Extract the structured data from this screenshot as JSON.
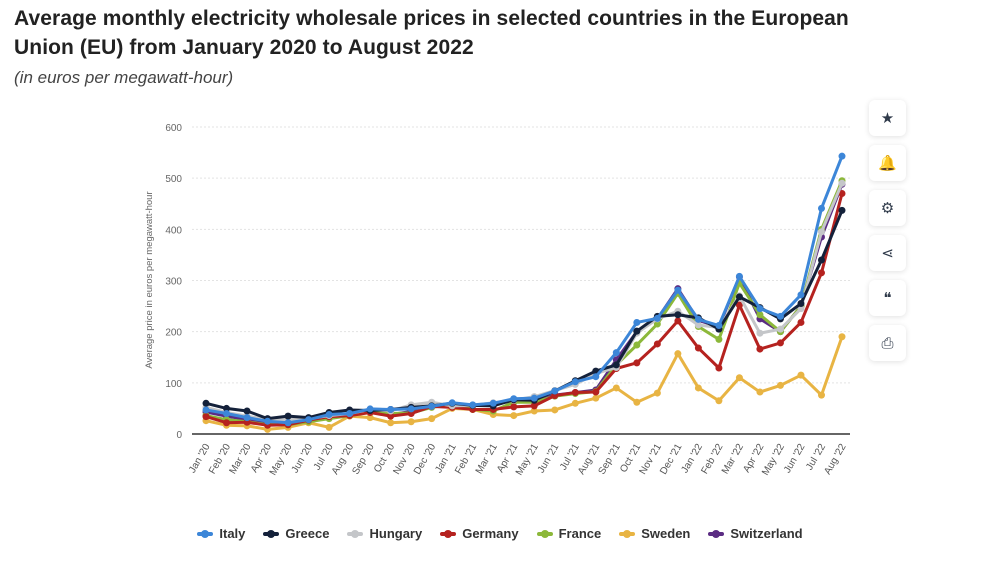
{
  "title": "Average monthly electricity wholesale prices in selected countries in the European Union (EU) from January 2020 to August 2022",
  "subtitle": "(in euros per megawatt-hour)",
  "side_buttons": [
    {
      "icon": "star-icon",
      "glyph": "★"
    },
    {
      "icon": "bell-icon",
      "glyph": "🔔"
    },
    {
      "icon": "gear-icon",
      "glyph": "⚙"
    },
    {
      "icon": "share-icon",
      "glyph": "⋖"
    },
    {
      "icon": "quote-icon",
      "glyph": "❝"
    },
    {
      "icon": "print-icon",
      "glyph": "⎙"
    }
  ],
  "chart_data": {
    "type": "line",
    "ylabel": "Average price in euros per megawatt-hour",
    "ylim": [
      0,
      600
    ],
    "yticks": [
      0,
      100,
      200,
      300,
      400,
      500,
      600
    ],
    "grid": true,
    "legend": "bottom",
    "categories": [
      "Jan '20",
      "Feb '20",
      "Mar '20",
      "Apr '20",
      "May '20",
      "Jun '20",
      "Jul '20",
      "Aug '20",
      "Sep '20",
      "Oct '20",
      "Nov '20",
      "Dec '20",
      "Jan '21",
      "Feb '21",
      "Mar '21",
      "Apr '21",
      "May '21",
      "Jun '21",
      "Jul '21",
      "Aug '21",
      "Sep '21",
      "Oct '21",
      "Nov '21",
      "Dec '21",
      "Jan '22",
      "Feb '22",
      "Mar '22",
      "Apr '22",
      "May '22",
      "Jun '22",
      "Jul '22",
      "Aug '22"
    ],
    "series": [
      {
        "name": "Italy",
        "color": "#3c86d8",
        "values": [
          47,
          40,
          32,
          25,
          22,
          28,
          38,
          40,
          49,
          48,
          49,
          54,
          61,
          57,
          60,
          69,
          70,
          84,
          102,
          112,
          159,
          218,
          226,
          281,
          224,
          212,
          308,
          245,
          230,
          272,
          441,
          543
        ]
      },
      {
        "name": "Greece",
        "color": "#14213a",
        "values": [
          60,
          50,
          45,
          30,
          35,
          32,
          42,
          47,
          46,
          48,
          52,
          55,
          60,
          56,
          55,
          67,
          66,
          84,
          104,
          123,
          135,
          201,
          230,
          233,
          227,
          205,
          268,
          247,
          225,
          255,
          340,
          437
        ]
      },
      {
        "name": "Hungary",
        "color": "#c4c6c9",
        "values": [
          52,
          42,
          35,
          28,
          28,
          30,
          36,
          40,
          48,
          45,
          57,
          62,
          55,
          56,
          61,
          66,
          73,
          85,
          97,
          118,
          130,
          197,
          225,
          240,
          213,
          208,
          270,
          197,
          205,
          245,
          395,
          490
        ]
      },
      {
        "name": "Germany",
        "color": "#b5221f",
        "values": [
          34,
          22,
          23,
          17,
          18,
          27,
          34,
          36,
          42,
          35,
          40,
          54,
          52,
          48,
          48,
          53,
          55,
          75,
          81,
          82,
          128,
          139,
          176,
          221,
          168,
          129,
          252,
          166,
          178,
          218,
          315,
          470
        ]
      },
      {
        "name": "France",
        "color": "#8cb83a",
        "values": [
          36,
          28,
          24,
          18,
          18,
          24,
          30,
          36,
          45,
          40,
          41,
          52,
          58,
          48,
          45,
          62,
          62,
          74,
          79,
          83,
          135,
          174,
          215,
          275,
          210,
          185,
          295,
          233,
          200,
          250,
          400,
          495
        ]
      },
      {
        "name": "Sweden",
        "color": "#e8b443",
        "values": [
          26,
          17,
          16,
          9,
          13,
          22,
          13,
          35,
          32,
          22,
          24,
          30,
          50,
          48,
          38,
          36,
          45,
          47,
          60,
          70,
          90,
          62,
          80,
          157,
          90,
          65,
          110,
          82,
          95,
          115,
          76,
          190
        ]
      },
      {
        "name": "Switzerland",
        "color": "#5b2c83",
        "values": [
          43,
          35,
          28,
          20,
          20,
          27,
          32,
          39,
          48,
          38,
          44,
          54,
          60,
          56,
          59,
          65,
          65,
          76,
          81,
          86,
          145,
          200,
          225,
          284,
          222,
          210,
          307,
          225,
          200,
          250,
          385,
          488
        ]
      }
    ]
  }
}
